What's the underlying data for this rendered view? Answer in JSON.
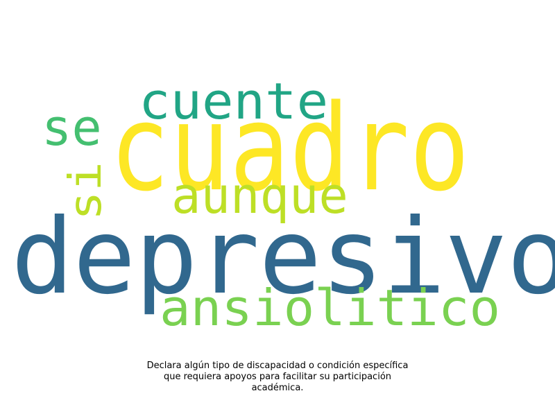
{
  "words": [
    {
      "text": "cuadro",
      "color": "#fde725"
    },
    {
      "text": "depresivo",
      "color": "#31688e"
    },
    {
      "text": "ansiolitico",
      "color": "#7ad151"
    },
    {
      "text": "cuente",
      "color": "#21a585"
    },
    {
      "text": "aunque",
      "color": "#bddf26"
    },
    {
      "text": "se",
      "color": "#44bf70"
    },
    {
      "text": "si",
      "color": "#bddf26"
    }
  ],
  "caption": {
    "line1": "Declara algún tipo de discapacidad o condición específica",
    "line2": "que requiera apoyos para facilitar su participación",
    "line3": "académica."
  }
}
